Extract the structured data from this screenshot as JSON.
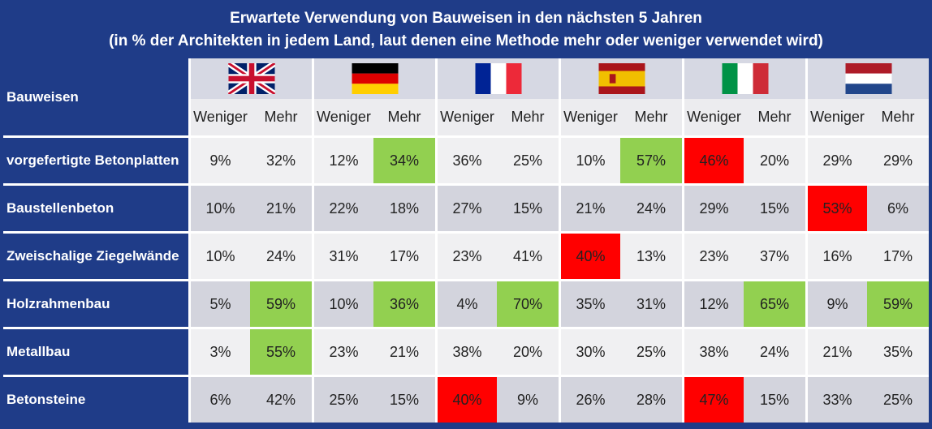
{
  "chart_data": {
    "type": "table",
    "title": "Erwartete Verwendung von Bauweisen in den nächsten 5 Jahren",
    "subtitle": "(in % der Architekten in jedem Land, laut denen eine Methode mehr oder weniger verwendet wird)",
    "row_header": "Bauweisen",
    "column_groups": [
      {
        "flag": "uk-flag-icon"
      },
      {
        "flag": "germany-flag-icon"
      },
      {
        "flag": "france-flag-icon"
      },
      {
        "flag": "spain-flag-icon"
      },
      {
        "flag": "italy-flag-icon"
      },
      {
        "flag": "netherlands-flag-icon"
      }
    ],
    "subcolumns": [
      "Weniger",
      "Mehr"
    ],
    "rows": [
      {
        "label": "vorgefertigte Betonplatten",
        "values": [
          "9%",
          "32%",
          "12%",
          "34%",
          "36%",
          "25%",
          "10%",
          "57%",
          "46%",
          "20%",
          "29%",
          "29%"
        ]
      },
      {
        "label": "Baustellenbeton",
        "values": [
          "10%",
          "21%",
          "22%",
          "18%",
          "27%",
          "15%",
          "21%",
          "24%",
          "29%",
          "15%",
          "53%",
          "6%"
        ]
      },
      {
        "label": "Zweischalige Ziegelwände",
        "values": [
          "10%",
          "24%",
          "31%",
          "17%",
          "23%",
          "41%",
          "40%",
          "13%",
          "23%",
          "37%",
          "16%",
          "17%"
        ]
      },
      {
        "label": "Holzrahmenbau",
        "values": [
          "5%",
          "59%",
          "10%",
          "36%",
          "4%",
          "70%",
          "35%",
          "31%",
          "12%",
          "65%",
          "9%",
          "59%"
        ]
      },
      {
        "label": "Metallbau",
        "values": [
          "3%",
          "55%",
          "23%",
          "21%",
          "38%",
          "20%",
          "30%",
          "25%",
          "38%",
          "24%",
          "21%",
          "35%"
        ]
      },
      {
        "label": "Betonsteine",
        "values": [
          "6%",
          "42%",
          "25%",
          "15%",
          "40%",
          "9%",
          "26%",
          "28%",
          "47%",
          "15%",
          "33%",
          "25%"
        ]
      }
    ],
    "highlights": {
      "green": [
        [
          0,
          3
        ],
        [
          0,
          7
        ],
        [
          3,
          1
        ],
        [
          3,
          3
        ],
        [
          3,
          5
        ],
        [
          3,
          9
        ],
        [
          3,
          11
        ],
        [
          4,
          1
        ]
      ],
      "red": [
        [
          0,
          8
        ],
        [
          1,
          10
        ],
        [
          2,
          6
        ],
        [
          5,
          4
        ],
        [
          5,
          8
        ]
      ]
    },
    "colors": {
      "header_bg": "#1f3c88",
      "green": "#92d050",
      "red": "#ff0000",
      "row_light": "#f0f0f2",
      "row_dark": "#d3d4dd"
    }
  }
}
